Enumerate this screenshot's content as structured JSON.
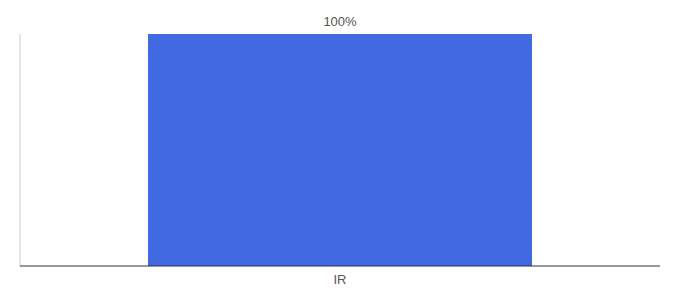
{
  "chart_data": {
    "type": "bar",
    "categories": [
      "IR"
    ],
    "values": [
      100
    ],
    "color": "#4169e1",
    "ylim": [
      0,
      100
    ],
    "data_labels": true,
    "value_labels": [
      "100%"
    ],
    "tick_labels": "x",
    "grid": false
  }
}
